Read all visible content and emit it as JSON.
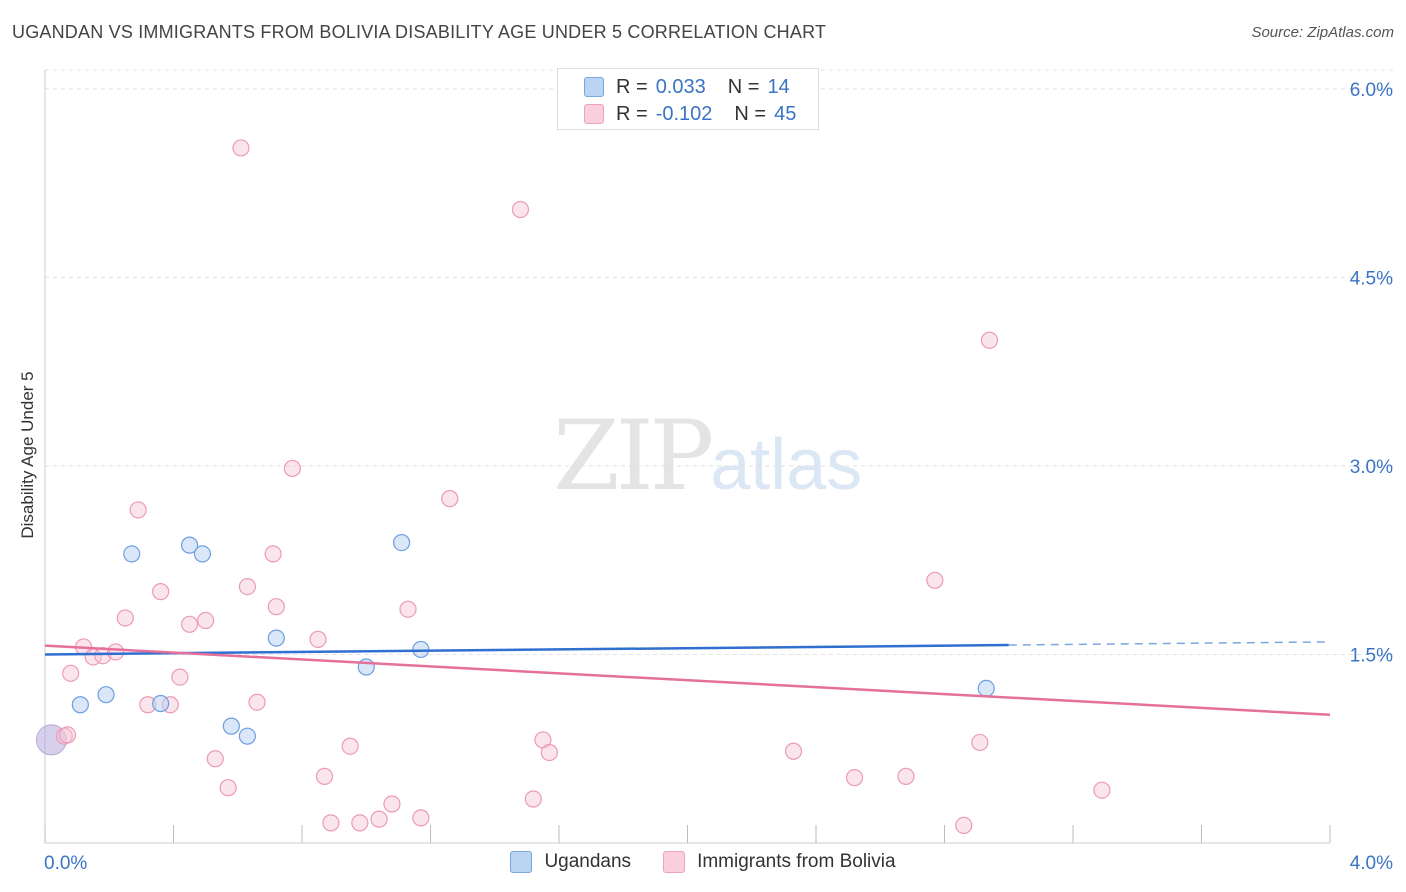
{
  "title": "UGANDAN VS IMMIGRANTS FROM BOLIVIA DISABILITY AGE UNDER 5 CORRELATION CHART",
  "source": "Source: ZipAtlas.com",
  "watermark": {
    "zip": "ZIP",
    "atlas": "atlas"
  },
  "legend": {
    "rows": [
      {
        "r_label": "R =",
        "r_value": "0.033",
        "n_label": "N =",
        "n_value": "14",
        "color": "#aecbf0"
      },
      {
        "r_label": "R =",
        "r_value": "-0.102",
        "n_label": "N =",
        "n_value": "45",
        "color": "#f6c0d2"
      }
    ]
  },
  "bottom_legend": [
    "Ugandans",
    "Immigrants from Bolivia"
  ],
  "chart_data": {
    "type": "scatter",
    "title": "UGANDAN VS IMMIGRANTS FROM BOLIVIA DISABILITY AGE UNDER 5 CORRELATION CHART",
    "xlabel": "",
    "ylabel": "Disability Age Under 5",
    "xlim": [
      0,
      4.0
    ],
    "ylim": [
      0,
      6.15
    ],
    "x_tick_labels": [
      "0.0%",
      "4.0%"
    ],
    "y_ticks": [
      1.5,
      3.0,
      4.5,
      6.0
    ],
    "y_tick_labels": [
      "1.5%",
      "3.0%",
      "4.5%",
      "6.0%"
    ],
    "grid": true,
    "series": [
      {
        "name": "Ugandans",
        "color": "#5b95dc",
        "fill": "#bcd4f3",
        "points": [
          [
            0.02,
            0.82
          ],
          [
            0.11,
            1.1
          ],
          [
            0.19,
            1.18
          ],
          [
            0.27,
            2.3
          ],
          [
            0.36,
            1.11
          ],
          [
            0.45,
            2.37
          ],
          [
            0.49,
            2.3
          ],
          [
            0.58,
            0.93
          ],
          [
            0.63,
            0.85
          ],
          [
            0.72,
            1.63
          ],
          [
            1.0,
            1.4
          ],
          [
            1.11,
            2.39
          ],
          [
            1.17,
            1.54
          ],
          [
            2.93,
            1.23
          ]
        ],
        "trend": {
          "x0": 0.0,
          "y0": 1.5,
          "x1": 3.0,
          "y1": 1.575,
          "dash_x1": 4.0,
          "dash_y1": 1.6
        }
      },
      {
        "name": "Immigrants from Bolivia",
        "color": "#e87da3",
        "fill": "#f6c6d6",
        "points": [
          [
            0.06,
            0.85
          ],
          [
            0.08,
            1.35
          ],
          [
            0.12,
            1.56
          ],
          [
            0.15,
            1.48
          ],
          [
            0.18,
            1.49
          ],
          [
            0.22,
            1.52
          ],
          [
            0.25,
            1.79
          ],
          [
            0.29,
            2.65
          ],
          [
            0.32,
            1.1
          ],
          [
            0.36,
            2.0
          ],
          [
            0.39,
            1.1
          ],
          [
            0.42,
            1.32
          ],
          [
            0.45,
            1.74
          ],
          [
            0.5,
            1.77
          ],
          [
            0.53,
            0.67
          ],
          [
            0.57,
            0.44
          ],
          [
            0.61,
            5.53
          ],
          [
            0.63,
            2.04
          ],
          [
            0.66,
            1.12
          ],
          [
            0.71,
            2.3
          ],
          [
            0.72,
            1.88
          ],
          [
            0.77,
            2.98
          ],
          [
            0.85,
            1.62
          ],
          [
            0.87,
            0.53
          ],
          [
            0.89,
            0.16
          ],
          [
            0.95,
            0.77
          ],
          [
            0.98,
            0.16
          ],
          [
            1.04,
            0.19
          ],
          [
            1.08,
            0.31
          ],
          [
            1.13,
            1.86
          ],
          [
            1.17,
            0.2
          ],
          [
            1.26,
            2.74
          ],
          [
            1.48,
            5.04
          ],
          [
            1.52,
            0.35
          ],
          [
            1.55,
            0.82
          ],
          [
            1.57,
            0.72
          ],
          [
            2.33,
            0.73
          ],
          [
            2.52,
            0.52
          ],
          [
            2.68,
            0.53
          ],
          [
            2.77,
            2.09
          ],
          [
            2.86,
            0.14
          ],
          [
            2.91,
            0.8
          ],
          [
            2.94,
            4.0
          ],
          [
            3.29,
            0.42
          ],
          [
            0.07,
            0.86
          ]
        ],
        "trend": {
          "x0": 0.0,
          "y0": 1.57,
          "x1": 4.0,
          "y1": 1.02
        }
      }
    ]
  }
}
